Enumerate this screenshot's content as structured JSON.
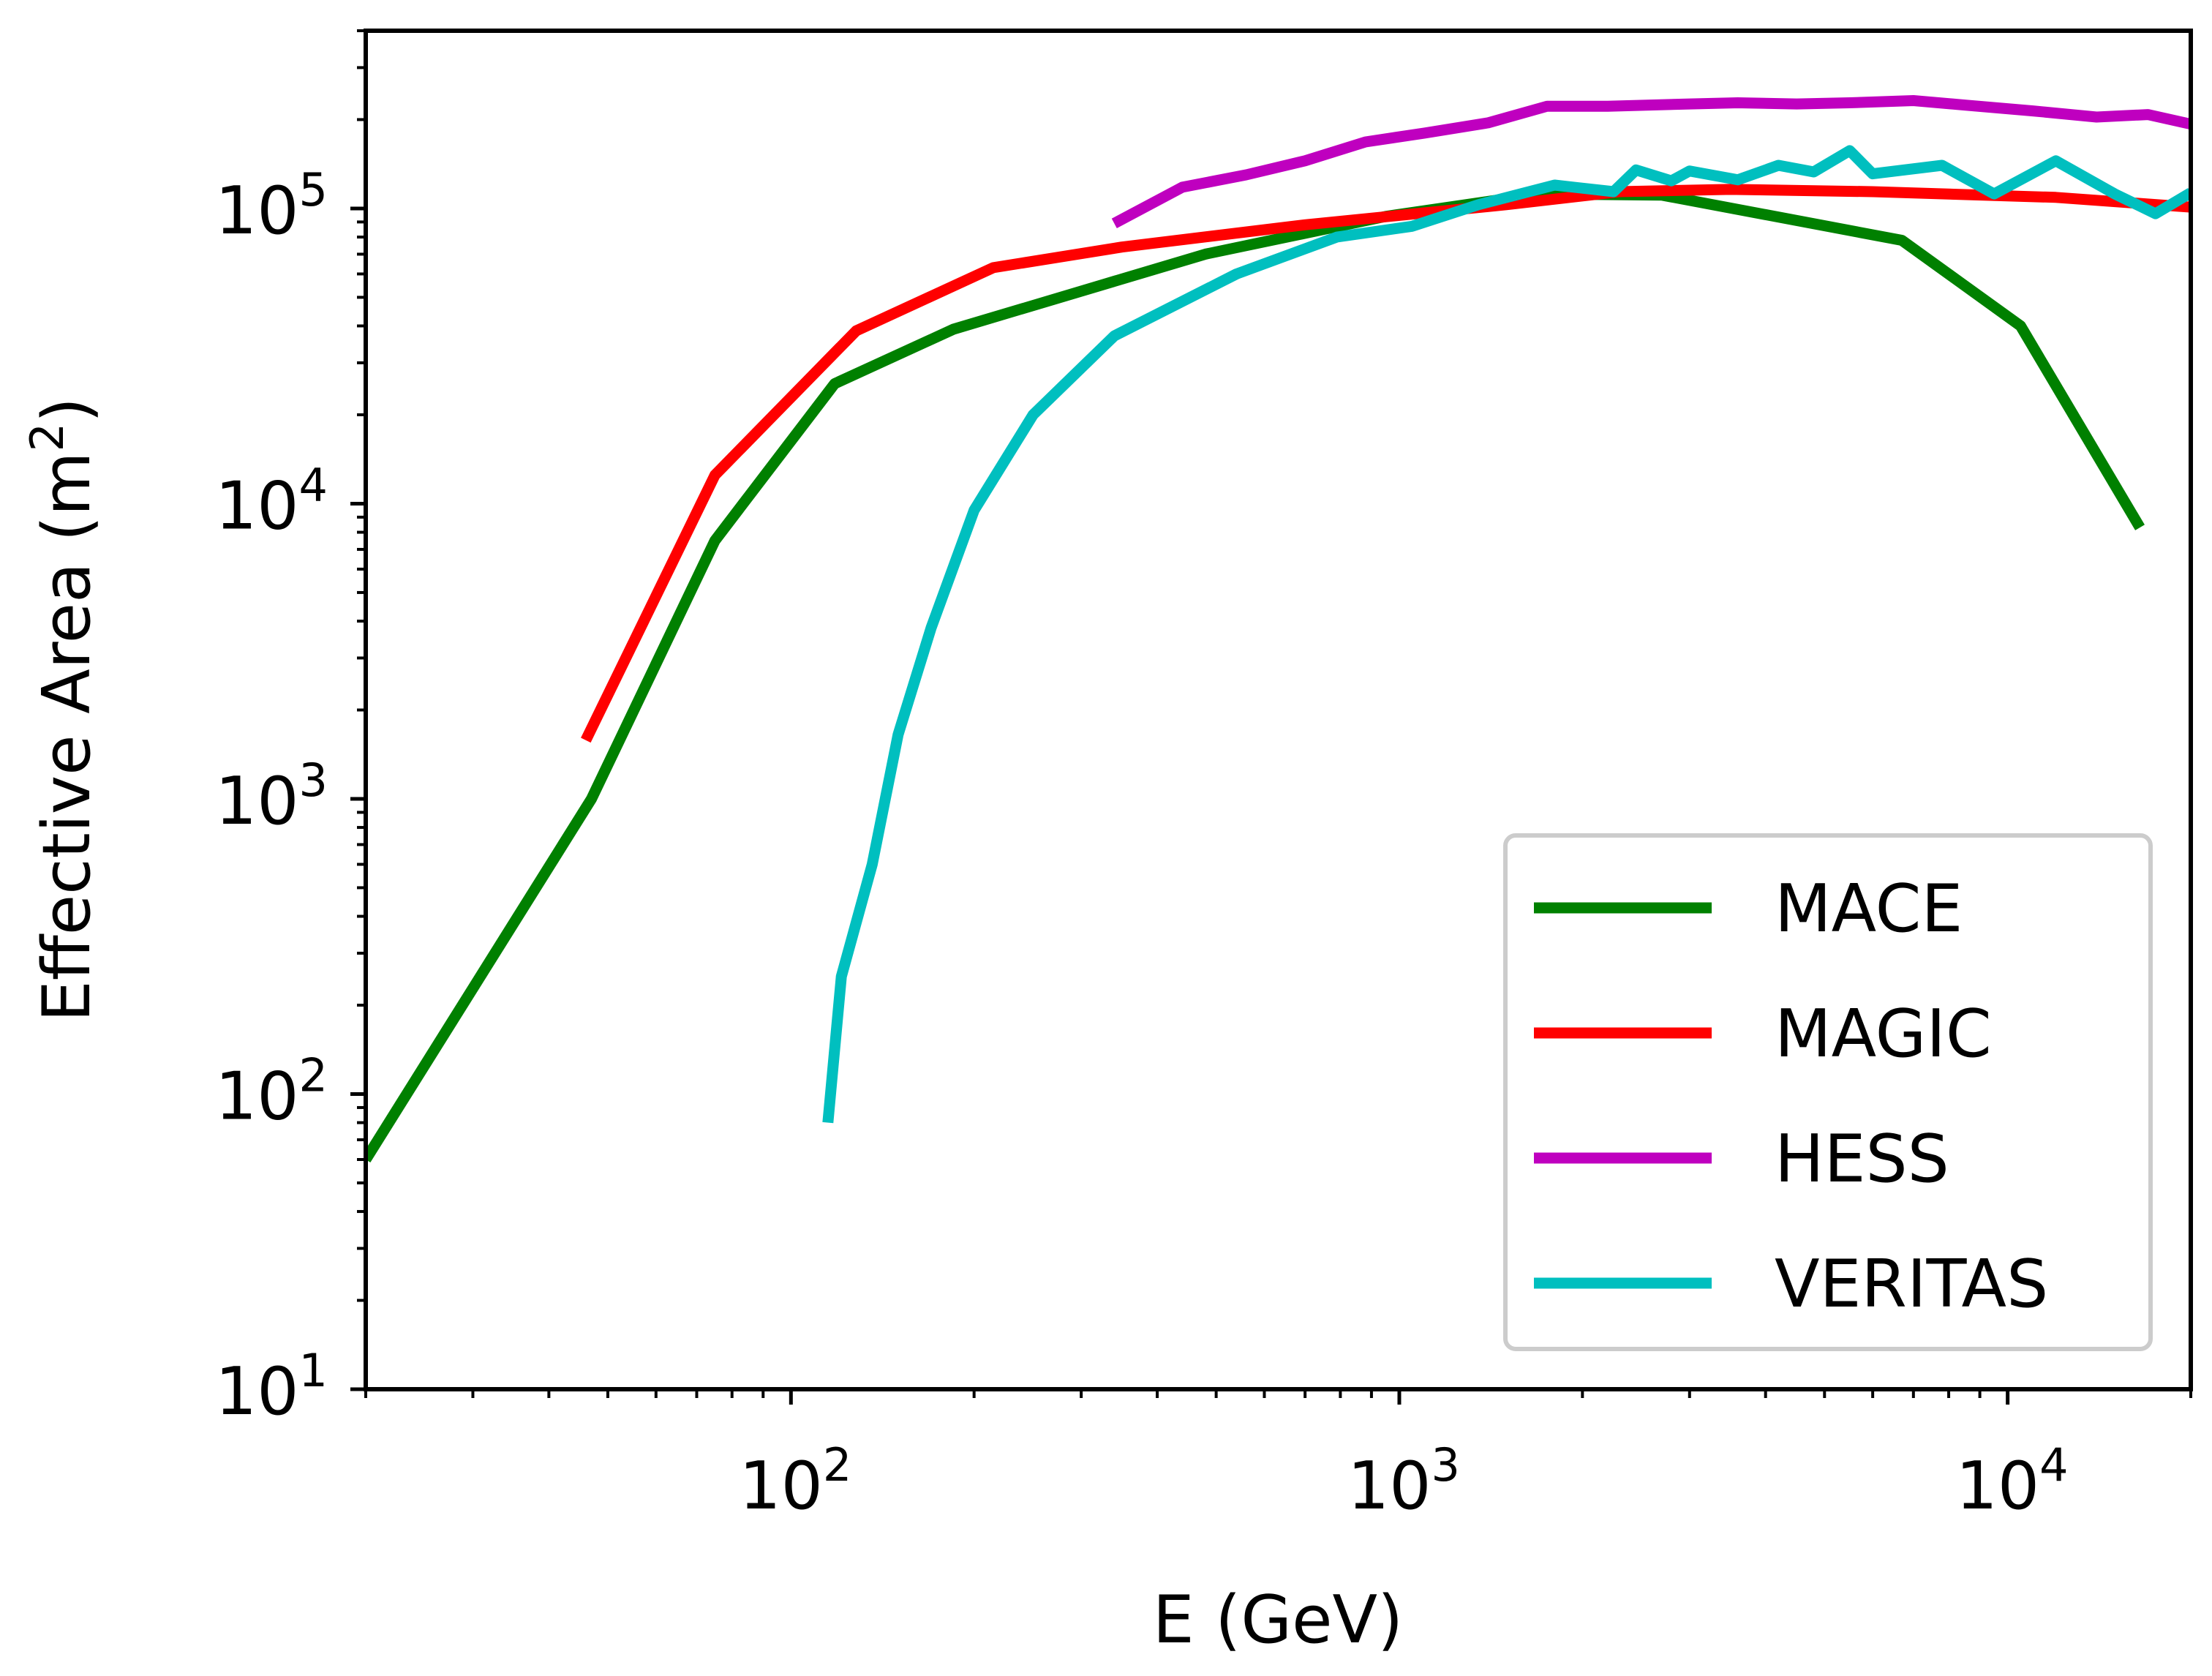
{
  "chart_data": {
    "type": "line",
    "title": "",
    "xlabel": "E (GeV)",
    "ylabel": "Effective Area (m",
    "ylabel_sup": "2",
    "ylabel_suffix": ")",
    "xscale": "log",
    "yscale": "log",
    "xlim": [
      20,
      20000
    ],
    "ylim": [
      10,
      400000
    ],
    "x_ticks": [
      {
        "value": 100,
        "base": "10",
        "exp": "2"
      },
      {
        "value": 1000,
        "base": "10",
        "exp": "3"
      },
      {
        "value": 10000,
        "base": "10",
        "exp": "4"
      }
    ],
    "y_ticks": [
      {
        "value": 10,
        "base": "10",
        "exp": "1"
      },
      {
        "value": 100,
        "base": "10",
        "exp": "2"
      },
      {
        "value": 1000,
        "base": "10",
        "exp": "3"
      },
      {
        "value": 10000,
        "base": "10",
        "exp": "4"
      },
      {
        "value": 100000,
        "base": "10",
        "exp": "5"
      }
    ],
    "legend_position": "lower-right",
    "series": [
      {
        "name": "MACE",
        "color": "#008000",
        "points": [
          [
            20,
            60
          ],
          [
            47,
            1000
          ],
          [
            75,
            7500
          ],
          [
            118,
            25500
          ],
          [
            185,
            39000
          ],
          [
            480,
            70000
          ],
          [
            950,
            94000
          ],
          [
            1700,
            112000
          ],
          [
            2700,
            111000
          ],
          [
            6700,
            78000
          ],
          [
            10500,
            40000
          ],
          [
            16500,
            8300
          ]
        ]
      },
      {
        "name": "MAGIC",
        "color": "#ff0000",
        "points": [
          [
            46,
            1580
          ],
          [
            75,
            12500
          ],
          [
            128,
            38500
          ],
          [
            215,
            63000
          ],
          [
            350,
            74000
          ],
          [
            700,
            88000
          ],
          [
            1500,
            103000
          ],
          [
            2300,
            114000
          ],
          [
            3500,
            116000
          ],
          [
            6000,
            114000
          ],
          [
            12000,
            109000
          ],
          [
            20000,
            101000
          ]
        ]
      },
      {
        "name": "HESS",
        "color": "#bf00bf",
        "points": [
          [
            340,
            89000
          ],
          [
            440,
            118000
          ],
          [
            560,
            130000
          ],
          [
            700,
            145000
          ],
          [
            880,
            168000
          ],
          [
            1100,
            180000
          ],
          [
            1400,
            195000
          ],
          [
            1750,
            222000
          ],
          [
            2200,
            222000
          ],
          [
            3000,
            226000
          ],
          [
            3600,
            228000
          ],
          [
            4500,
            226000
          ],
          [
            5500,
            228000
          ],
          [
            7000,
            232000
          ],
          [
            8500,
            224000
          ],
          [
            11000,
            214000
          ],
          [
            14000,
            204000
          ],
          [
            17000,
            208000
          ],
          [
            20000,
            193000
          ]
        ]
      },
      {
        "name": "VERITAS",
        "color": "#00bfbf",
        "points": [
          [
            115,
            80
          ],
          [
            121,
            250
          ],
          [
            136,
            600
          ],
          [
            150,
            1650
          ],
          [
            170,
            3800
          ],
          [
            200,
            9500
          ],
          [
            250,
            20000
          ],
          [
            340,
            37000
          ],
          [
            540,
            60000
          ],
          [
            790,
            80000
          ],
          [
            1050,
            87000
          ],
          [
            1350,
            103000
          ],
          [
            1800,
            120000
          ],
          [
            2250,
            114000
          ],
          [
            2450,
            135000
          ],
          [
            2800,
            124000
          ],
          [
            3000,
            134000
          ],
          [
            3600,
            125000
          ],
          [
            4200,
            140000
          ],
          [
            4800,
            133000
          ],
          [
            5500,
            157000
          ],
          [
            6000,
            131000
          ],
          [
            7800,
            140000
          ],
          [
            9500,
            112000
          ],
          [
            12000,
            145000
          ],
          [
            15000,
            112000
          ],
          [
            17500,
            96000
          ],
          [
            20000,
            113000
          ]
        ]
      }
    ]
  }
}
